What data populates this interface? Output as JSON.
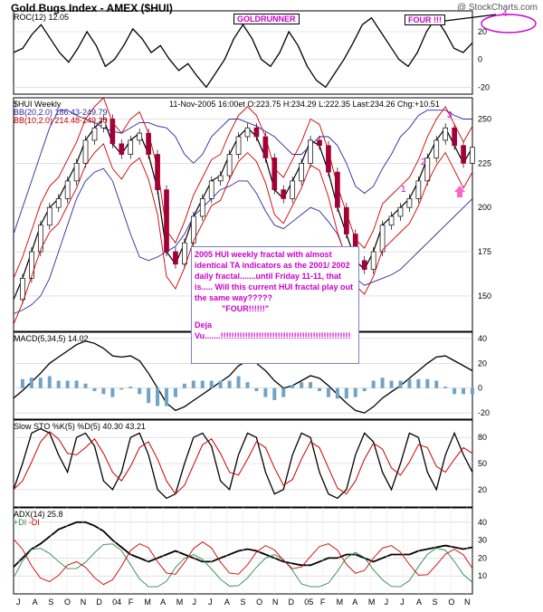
{
  "header": {
    "title": "Gold Bugs Index - AMEX ($HUI)",
    "watermark": "@ StockCharts.com"
  },
  "annotations": {
    "goldrunner": "GOLDRUNNER",
    "four": "FOUR !!!",
    "four_num": "4",
    "wave1": "1",
    "wave2": "2",
    "wave3": "3",
    "comment_line1": "2005 HUI weekly fractal with almost identical TA indicators as the 2001/ 2002 daily fractal.......until Friday 11-11, that is.....  Will this current HUI fractal play out the same way?????",
    "comment_line2": "\"FOUR!!!!!!\"",
    "comment_line3": "Deja Vu.......!!!!!!!!!!!!!!!!!!!!!!!!!!!!!!!!!!!!!!!!!!!!!!!!"
  },
  "colors": {
    "price_up": "#000000",
    "price_down": "#a0003a",
    "bb20": "#2a2aa0",
    "bb10": "#cc0000",
    "accent": "#cc00cc"
  },
  "chart_data": [
    {
      "type": "line",
      "panel": "roc",
      "label": "ROC(12)",
      "last_value": "12.05",
      "yticks": [
        "20",
        "0",
        "-20"
      ],
      "ylim": [
        -25,
        35
      ],
      "series": [
        {
          "name": "ROC(12)",
          "values": [
            5,
            8,
            18,
            25,
            15,
            5,
            -2,
            8,
            20,
            10,
            -5,
            0,
            10,
            22,
            15,
            5,
            10,
            0,
            -8,
            -3,
            -12,
            -20,
            -10,
            0,
            15,
            25,
            15,
            0,
            -5,
            5,
            20,
            10,
            -5,
            -15,
            -20,
            -10,
            0,
            12,
            25,
            30,
            20,
            10,
            0,
            -5,
            5,
            20,
            30,
            20,
            8,
            5,
            12
          ]
        }
      ]
    },
    {
      "type": "line",
      "panel": "price",
      "label": "$HUI Weekly",
      "header_text": "11-Nov-2005 16:00et  O:223.75  H:234.29  L:222.35  Last:234.26  Chg:+10.51",
      "bb20_label": "BB(20,2.0) 186.43-249.79",
      "bb10_label": "BB(10,2.0) 214.48-249.30",
      "yticks": [
        "250",
        "225",
        "200",
        "175",
        "150"
      ],
      "ylim": [
        130,
        262
      ],
      "x_labels": [
        "J",
        "A",
        "S",
        "O",
        "N",
        "D",
        "04",
        "F",
        "M",
        "A",
        "M",
        "J",
        "J",
        "A",
        "S",
        "O",
        "N",
        "D",
        "05",
        "F",
        "M",
        "A",
        "M",
        "J",
        "J",
        "A",
        "S",
        "O",
        "N"
      ],
      "series": [
        {
          "name": "$HUI",
          "values": [
            148,
            160,
            175,
            190,
            200,
            205,
            215,
            225,
            238,
            245,
            250,
            236,
            230,
            238,
            242,
            230,
            210,
            175,
            168,
            180,
            195,
            205,
            215,
            218,
            230,
            240,
            245,
            240,
            228,
            210,
            205,
            215,
            225,
            238,
            235,
            220,
            200,
            185,
            170,
            165,
            175,
            190,
            195,
            200,
            205,
            215,
            228,
            238,
            245,
            235,
            225,
            234
          ]
        },
        {
          "name": "BB(20,2.0) upper",
          "values": [
            185,
            200,
            215,
            230,
            245,
            255,
            255,
            252,
            250,
            248,
            245,
            243,
            242,
            245,
            248,
            248,
            246,
            245,
            240,
            230,
            225,
            230,
            240,
            245,
            250,
            250,
            248,
            246,
            243,
            240,
            235,
            230,
            230,
            235,
            240,
            240,
            235,
            225,
            212,
            208,
            212,
            222,
            230,
            240,
            245,
            252,
            255,
            255,
            255,
            252,
            250,
            250
          ]
        },
        {
          "name": "BB(20,2.0) lower",
          "values": [
            140,
            142,
            145,
            150,
            160,
            175,
            190,
            205,
            215,
            220,
            222,
            215,
            200,
            185,
            172,
            170,
            172,
            175,
            178,
            185,
            195,
            200,
            205,
            210,
            212,
            215,
            215,
            208,
            198,
            190,
            188,
            192,
            196,
            200,
            198,
            192,
            185,
            172,
            160,
            156,
            158,
            160,
            162,
            165,
            170,
            175,
            180,
            185,
            190,
            195,
            200,
            205
          ]
        }
      ]
    },
    {
      "type": "line",
      "panel": "macd",
      "label": "MACD(5,34,5)",
      "last_value": "14.02",
      "yticks": [
        "40",
        "20",
        "0",
        "-20"
      ],
      "ylim": [
        -25,
        45
      ],
      "series": [
        {
          "name": "MACD",
          "values": [
            -8,
            -2,
            5,
            12,
            20,
            25,
            30,
            35,
            38,
            36,
            32,
            26,
            25,
            26,
            22,
            12,
            0,
            -12,
            -18,
            -15,
            -10,
            -5,
            0,
            5,
            10,
            18,
            22,
            20,
            14,
            6,
            0,
            2,
            6,
            10,
            8,
            2,
            -5,
            -12,
            -18,
            -20,
            -15,
            -8,
            -3,
            2,
            8,
            14,
            20,
            25,
            26,
            22,
            18,
            14
          ]
        }
      ]
    },
    {
      "type": "line",
      "panel": "sto",
      "label": "Slow STO %K(5) %D(5)",
      "values_text": "40.30  43.21",
      "yticks": [
        "80",
        "50",
        "20"
      ],
      "ylim": [
        0,
        100
      ],
      "series": [
        {
          "name": "%K",
          "values": [
            20,
            50,
            85,
            90,
            85,
            60,
            40,
            80,
            85,
            70,
            30,
            20,
            40,
            80,
            85,
            60,
            20,
            10,
            15,
            50,
            80,
            85,
            70,
            30,
            20,
            60,
            85,
            80,
            40,
            15,
            20,
            60,
            85,
            80,
            40,
            15,
            10,
            20,
            60,
            85,
            75,
            40,
            20,
            50,
            85,
            80,
            40,
            20,
            60,
            85,
            60,
            40
          ]
        }
      ]
    },
    {
      "type": "line",
      "panel": "adx",
      "label": "ADX(14)",
      "last_value": "25.8",
      "legend": [
        "+DI",
        "-DI"
      ],
      "yticks": [
        "40",
        "30",
        "20",
        "10"
      ],
      "ylim": [
        0,
        48
      ],
      "series": [
        {
          "name": "ADX",
          "values": [
            15,
            20,
            25,
            28,
            32,
            36,
            38,
            40,
            40,
            38,
            35,
            30,
            26,
            22,
            20,
            18,
            20,
            22,
            24,
            22,
            20,
            18,
            18,
            20,
            22,
            24,
            25,
            24,
            22,
            20,
            18,
            17,
            16,
            16,
            18,
            20,
            20,
            22,
            22,
            20,
            18,
            20,
            22,
            22,
            22,
            24,
            25,
            26,
            27,
            26,
            25,
            26
          ]
        }
      ]
    }
  ]
}
